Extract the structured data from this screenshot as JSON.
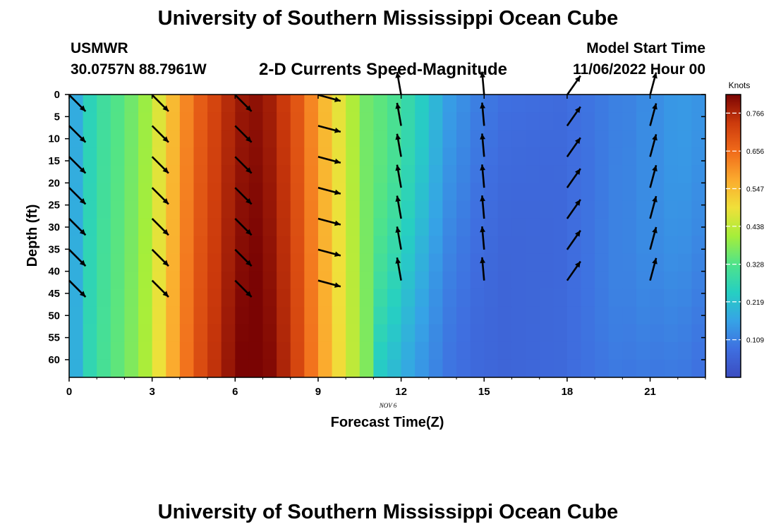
{
  "header": {
    "title": "University of Southern Mississippi Ocean Cube",
    "station": "USMWR",
    "coords": "30.0757N  88.7961W",
    "plot_name": "2-D Currents Speed-Magnitude",
    "start_label": "Model Start Time",
    "start_value": "11/06/2022 Hour 00"
  },
  "footer": {
    "title": "University of Southern Mississippi Ocean Cube"
  },
  "colors": {
    "arrow": "#000000",
    "colormap": [
      "#3b4cc0",
      "#3f6fe0",
      "#36a3e6",
      "#26cfc2",
      "#4fe38a",
      "#a6ee3a",
      "#f0e03a",
      "#fbaa2e",
      "#f06a1a",
      "#cc3a0c",
      "#7a0403"
    ]
  },
  "chart_data": {
    "type": "heatmap",
    "title": "2-D Currents Speed-Magnitude",
    "xlabel": "Forecast Time(Z)",
    "ylabel": "Depth (ft)",
    "x_ticks": [
      0,
      3,
      6,
      9,
      12,
      15,
      18,
      21
    ],
    "x_date_label": "NOV 6",
    "y_ticks": [
      0,
      5,
      10,
      15,
      20,
      25,
      30,
      35,
      40,
      45,
      50,
      55,
      60
    ],
    "xlim": [
      0,
      23
    ],
    "ylim": [
      0,
      64
    ],
    "colorbar_label": "Knots",
    "colorbar_ticks": [
      0.109,
      0.219,
      0.328,
      0.438,
      0.547,
      0.656,
      0.766
    ],
    "colorbar_range": [
      0.0,
      0.82
    ],
    "speed_by_hour": [
      0.18,
      0.26,
      0.3,
      0.33,
      0.36,
      0.4,
      0.47,
      0.55,
      0.62,
      0.68,
      0.72,
      0.76,
      0.79,
      0.8,
      0.78,
      0.74,
      0.69,
      0.62,
      0.55,
      0.48,
      0.42,
      0.36,
      0.33,
      0.3,
      0.26,
      0.22,
      0.18,
      0.14,
      0.12,
      0.1,
      0.09,
      0.08,
      0.08,
      0.08,
      0.08,
      0.08,
      0.09,
      0.1,
      0.11,
      0.12,
      0.12,
      0.13,
      0.13,
      0.14,
      0.14,
      0.13,
      0.12,
      0.11
    ],
    "vectors": {
      "hours": [
        0,
        3,
        6,
        9,
        12,
        15,
        18,
        21
      ],
      "depths": [
        2,
        9,
        16,
        23,
        30,
        37,
        44
      ],
      "direction_deg": [
        135,
        135,
        135,
        105,
        350,
        355,
        35,
        15
      ],
      "speed": [
        0.2,
        0.4,
        0.75,
        0.3,
        0.11,
        0.12,
        0.12,
        0.12
      ]
    }
  }
}
